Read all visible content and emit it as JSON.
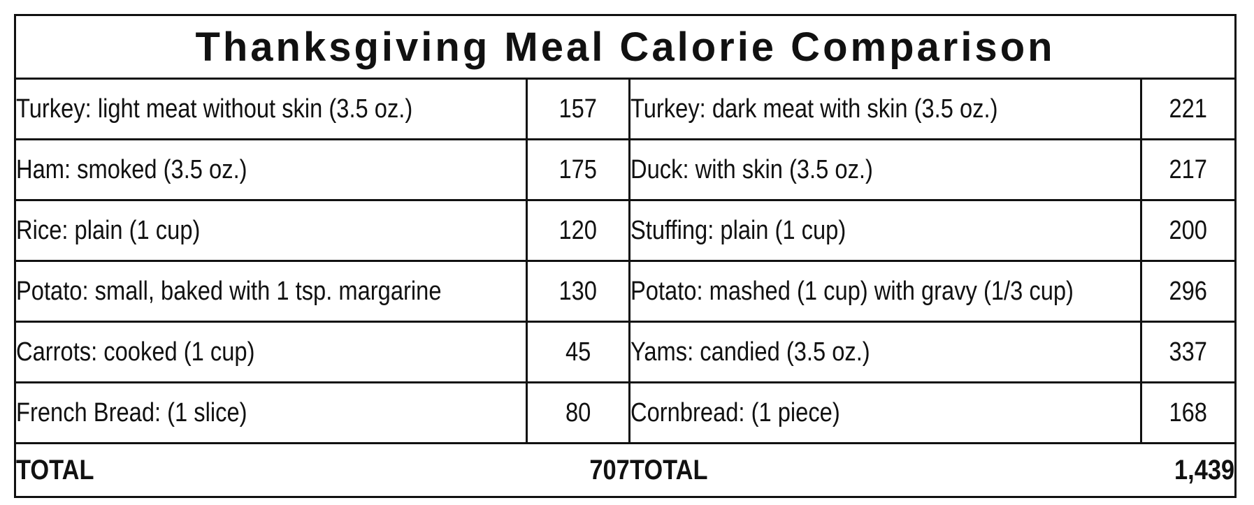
{
  "title": "Thanksgiving Meal Calorie Comparison",
  "rows": [
    {
      "left_item": "Turkey: light meat without skin (3.5 oz.)",
      "left_calories": "157",
      "right_item": "Turkey: dark meat with skin (3.5 oz.)",
      "right_calories": "221"
    },
    {
      "left_item": "Ham: smoked (3.5 oz.)",
      "left_calories": "175",
      "right_item": "Duck: with skin (3.5 oz.)",
      "right_calories": "217"
    },
    {
      "left_item": "Rice: plain (1 cup)",
      "left_calories": "120",
      "right_item": "Stuffing: plain (1 cup)",
      "right_calories": "200"
    },
    {
      "left_item": "Potato: small, baked with 1 tsp. margarine",
      "left_calories": "130",
      "right_item": "Potato: mashed (1 cup) with gravy (1/3 cup)",
      "right_calories": "296"
    },
    {
      "left_item": "Carrots: cooked (1 cup)",
      "left_calories": "45",
      "right_item": "Yams: candied (3.5 oz.)",
      "right_calories": "337"
    },
    {
      "left_item": "French Bread: (1 slice)",
      "left_calories": "80",
      "right_item": "Cornbread: (1 piece)",
      "right_calories": "168"
    }
  ],
  "totals": {
    "left_label": "TOTAL",
    "left_value": "707",
    "right_label": "TOTAL",
    "right_value": "1,439"
  }
}
